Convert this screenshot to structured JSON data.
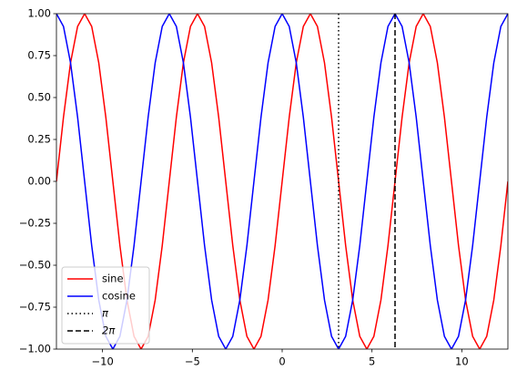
{
  "chart_data": {
    "type": "line",
    "x": [
      -12.566,
      -12.174,
      -11.781,
      -11.388,
      -10.996,
      -10.603,
      -10.21,
      -9.817,
      -9.425,
      -9.032,
      -8.639,
      -8.247,
      -7.854,
      -7.461,
      -7.069,
      -6.676,
      -6.283,
      -5.89,
      -5.498,
      -5.105,
      -4.712,
      -4.32,
      -3.927,
      -3.534,
      -3.142,
      -2.749,
      -2.356,
      -1.963,
      -1.571,
      -1.178,
      -0.785,
      -0.393,
      0,
      0.393,
      0.785,
      1.178,
      1.571,
      1.963,
      2.356,
      2.749,
      3.142,
      3.534,
      3.927,
      4.32,
      4.712,
      5.105,
      5.498,
      5.89,
      6.283,
      6.676,
      7.069,
      7.461,
      7.854,
      8.247,
      8.639,
      9.032,
      9.425,
      9.817,
      10.21,
      10.603,
      10.996,
      11.388,
      11.781,
      12.174,
      12.566
    ],
    "series": [
      {
        "name": "sine",
        "color": "#ff0000",
        "values": [
          0,
          0.383,
          0.707,
          0.924,
          1,
          0.924,
          0.707,
          0.383,
          0,
          -0.383,
          -0.707,
          -0.924,
          -1,
          -0.924,
          -0.707,
          -0.383,
          0,
          0.383,
          0.707,
          0.924,
          1,
          0.924,
          0.707,
          0.383,
          0,
          -0.383,
          -0.707,
          -0.924,
          -1,
          -0.924,
          -0.707,
          -0.383,
          0,
          0.383,
          0.707,
          0.924,
          1,
          0.924,
          0.707,
          0.383,
          0,
          -0.383,
          -0.707,
          -0.924,
          -1,
          -0.924,
          -0.707,
          -0.383,
          0,
          0.383,
          0.707,
          0.924,
          1,
          0.924,
          0.707,
          0.383,
          0,
          -0.383,
          -0.707,
          -0.924,
          -1,
          -0.924,
          -0.707,
          -0.383,
          0
        ]
      },
      {
        "name": "cosine",
        "color": "#0000ff",
        "values": [
          1,
          0.924,
          0.707,
          0.383,
          0,
          -0.383,
          -0.707,
          -0.924,
          -1,
          -0.924,
          -0.707,
          -0.383,
          0,
          0.383,
          0.707,
          0.924,
          1,
          0.924,
          0.707,
          0.383,
          0,
          -0.383,
          -0.707,
          -0.924,
          -1,
          -0.924,
          -0.707,
          -0.383,
          0,
          0.383,
          0.707,
          0.924,
          1,
          0.924,
          0.707,
          0.383,
          0,
          -0.383,
          -0.707,
          -0.924,
          -1,
          -0.924,
          -0.707,
          -0.383,
          0,
          0.383,
          0.707,
          0.924,
          1,
          0.924,
          0.707,
          0.383,
          0,
          -0.383,
          -0.707,
          -0.924,
          -1,
          -0.924,
          -0.707,
          -0.383,
          0,
          0.383,
          0.707,
          0.924,
          1
        ]
      }
    ],
    "vlines": [
      {
        "name": "π",
        "x": 3.14159,
        "color": "#000000",
        "style": "dotted"
      },
      {
        "name": "2π",
        "x": 6.28319,
        "color": "#000000",
        "style": "dashed"
      }
    ],
    "xlim": [
      -12.566,
      12.566
    ],
    "xticks": [
      {
        "value": -10,
        "label": "−10"
      },
      {
        "value": -5,
        "label": "−5"
      },
      0,
      5,
      10
    ],
    "ylim": [
      -1,
      1
    ],
    "yticks": [
      {
        "value": -1,
        "label": "−1.00"
      },
      {
        "value": -0.75,
        "label": "−0.75"
      },
      {
        "value": -0.5,
        "label": "−0.50"
      },
      {
        "value": -0.25,
        "label": "−0.25"
      },
      {
        "value": 0,
        "label": "0.00"
      },
      0.25,
      {
        "value": 0.5,
        "label": "0.50"
      },
      0.75,
      {
        "value": 1,
        "label": "1.00"
      }
    ],
    "legend": "lower left"
  }
}
